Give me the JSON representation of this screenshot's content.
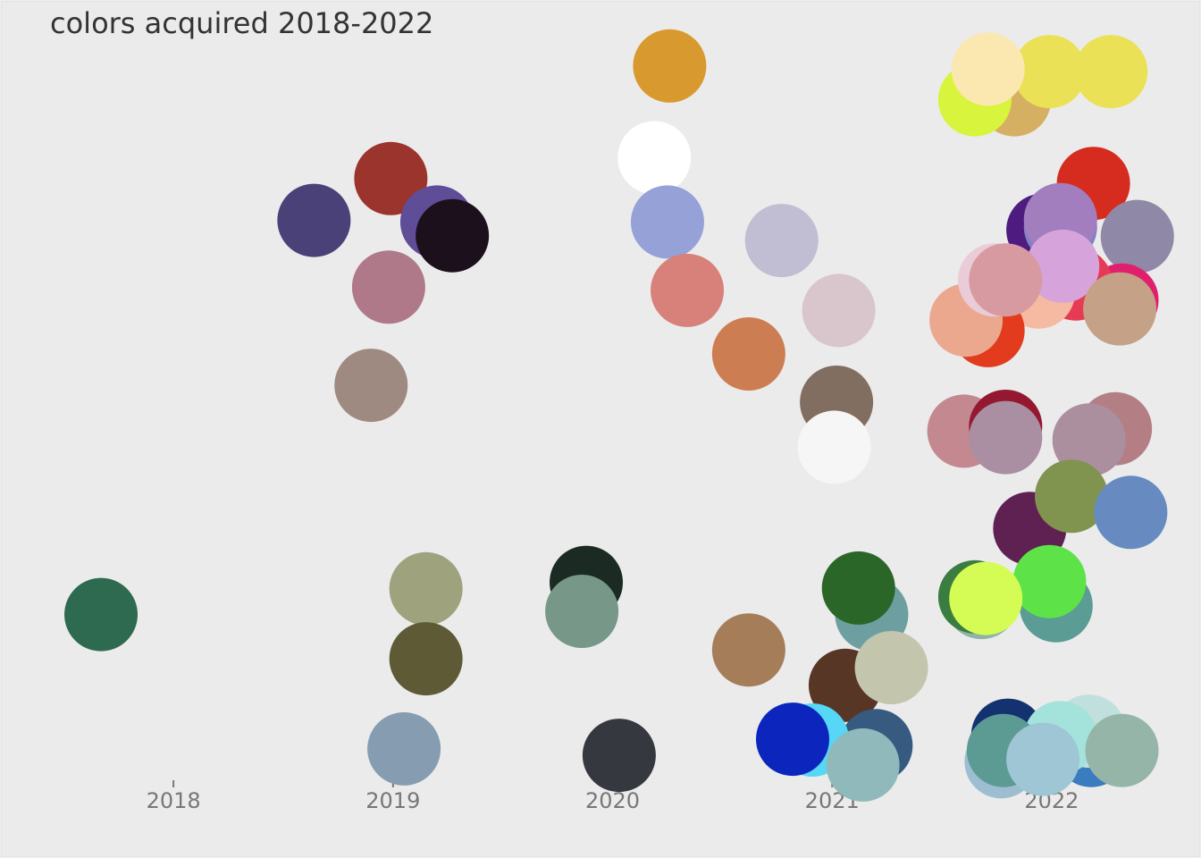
{
  "chart_data": {
    "type": "scatter",
    "title": "colors acquired 2018-2022",
    "x": [
      2017.67,
      2018.64,
      2018.99,
      2019.2,
      2019.27,
      2018.98,
      2018.9,
      2019.15,
      2019.15,
      2019.05,
      2020.26,
      2020.19,
      2020.25,
      2020.34,
      2020.77,
      2021.03,
      2020.62,
      2021.02,
      2021.01,
      2019.88,
      2019.86,
      2020.03,
      2020.62,
      2021.18,
      2021.12,
      2021.06,
      2021.27,
      2021.2,
      2020.91,
      2020.82,
      2021.14,
      2021.83,
      2021.65,
      2021.99,
      2022.27,
      2021.71,
      2022.19,
      2021.96,
      2022.04,
      2022.04,
      2022.39,
      2022.32,
      2022.11,
      2021.94,
      2022.05,
      2022.31,
      2021.71,
      2021.61,
      2021.74,
      2021.79,
      2021.6,
      2021.79,
      2021.79,
      2022.29,
      2022.17,
      2021.9,
      2022.09,
      2022.36,
      2021.68,
      2021.65,
      2022.02,
      2021.99,
      2021.7,
      2021.8,
      2022.18,
      2022.17,
      2022.04,
      2022.32,
      2021.77,
      2021.78,
      2021.96
    ],
    "values": [
      23.6,
      72.6,
      77.8,
      72.4,
      70.7,
      64.3,
      52.1,
      26.8,
      18.1,
      6.9,
      91.8,
      80.4,
      72.4,
      63.9,
      70.1,
      61.4,
      56.0,
      50.0,
      44.4,
      27.6,
      24.0,
      6.1,
      19.2,
      23.6,
      26.9,
      14.8,
      17.0,
      7.3,
      8.0,
      8.1,
      4.9,
      87.6,
      87.6,
      91.1,
      91.1,
      91.4,
      77.2,
      71.4,
      71.8,
      72.7,
      70.6,
      62.7,
      64.7,
      63.7,
      66.9,
      61.6,
      58.9,
      60.2,
      65.2,
      65.2,
      46.4,
      47.0,
      45.6,
      46.7,
      45.3,
      34.3,
      38.3,
      36.3,
      25.1,
      25.8,
      24.7,
      27.7,
      25.6,
      8.6,
      6.7,
      9.1,
      8.3,
      6.7,
      5.3,
      6.7,
      5.6
    ],
    "colors": [
      "#2e6a4f",
      "#4a4178",
      "#9a342d",
      "#5f4d97",
      "#1d101d",
      "#b07989",
      "#9e8a80",
      "#9ea27d",
      "#5e5a36",
      "#869db1",
      "#d8992e",
      "#ffffff",
      "#95a1d7",
      "#d8807a",
      "#c1bdd3",
      "#d9c6cd",
      "#cd7d52",
      "#826d61",
      "#f5f6f5",
      "#1b2a22",
      "#779888",
      "#363840",
      "#a57d59",
      "#6d9fa1",
      "#2b6629",
      "#573626",
      "#c3c5ad",
      "#365a80",
      "#56d7f5",
      "#0c26bd",
      "#90b9bb",
      "#d6b062",
      "#d9f43c",
      "#ebe157",
      "#ebe157",
      "#fbe8b0",
      "#d62c1f",
      "#4e1c80",
      "#7e82c5",
      "#a27ebf",
      "#8f88a6",
      "#e0206c",
      "#e63b55",
      "#f6b9a1",
      "#d6a4da",
      "#c4a187",
      "#e23b1e",
      "#eba88f",
      "#e9ccd7",
      "#d89aa1",
      "#c48890",
      "#931830",
      "#a98fa1",
      "#b37f85",
      "#ab8f9f",
      "#5e2152",
      "#80944f",
      "#678bc0",
      "#8fb3a7",
      "#3b7d40",
      "#5b9c94",
      "#5de348",
      "#d4fc54",
      "#13326f",
      "#3a7cbf",
      "#c1e0dd",
      "#a3e3db",
      "#95b5a8",
      "#9cbed0",
      "#5c9b94",
      "#9ec6d5"
    ],
    "xlim": [
      2017.21,
      2022.68
    ],
    "xticks": [
      2018,
      2019,
      2020,
      2021,
      2022
    ],
    "ylim": [
      0,
      100
    ]
  }
}
